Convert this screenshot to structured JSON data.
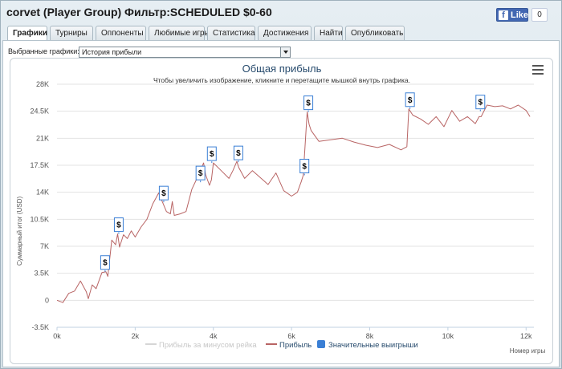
{
  "window": {
    "title": "corvet (Player Group) Фильтр:SCHEDULED $0-60",
    "fb_like_label": "Like",
    "fb_count": "0"
  },
  "tabs": [
    {
      "label": "Графики",
      "active": true
    },
    {
      "label": "Турниры",
      "active": false
    },
    {
      "label": "Оппоненты",
      "active": false
    },
    {
      "label": "Любимые игры",
      "active": false
    },
    {
      "label": "Статистика",
      "active": false
    },
    {
      "label": "Достижения",
      "active": false
    },
    {
      "label": "Найти",
      "active": false
    },
    {
      "label": "Опубликовать",
      "active": false
    }
  ],
  "selector": {
    "label": "Выбранные графики:",
    "value": "История прибыли"
  },
  "chart_data": {
    "type": "line",
    "title": "Общая прибыль",
    "subtitle": "Чтобы увеличить изображение, кликните и перетащите мышкой внутрь графика.",
    "ylabel": "Суммарный итог (USD)",
    "xlabel": "Номер игры",
    "ylim": [
      -3500,
      28000
    ],
    "xlim": [
      0,
      12200
    ],
    "y_ticks": [
      "-3.5K",
      "0",
      "3.5K",
      "7K",
      "10.5K",
      "14K",
      "17.5K",
      "21K",
      "24.5K",
      "28K"
    ],
    "x_ticks": [
      "0k",
      "2k",
      "4k",
      "6k",
      "8k",
      "10k",
      "12k"
    ],
    "grid": true,
    "line_color": "#b86464",
    "legend": [
      {
        "name": "Прибыль за минусом рейка",
        "color": "#d6d6d6"
      },
      {
        "name": "Прибыль",
        "color": "#b86464"
      },
      {
        "name": "Значительные выигрыши",
        "color": "#3a7fd5"
      }
    ],
    "marker_label": "$",
    "series": [
      {
        "name": "Прибыль",
        "x": [
          0,
          150,
          300,
          450,
          600,
          750,
          800,
          900,
          1000,
          1050,
          1150,
          1250,
          1300,
          1400,
          1500,
          1550,
          1600,
          1700,
          1800,
          1900,
          2000,
          2150,
          2300,
          2450,
          2600,
          2700,
          2800,
          2900,
          2950,
          3000,
          3150,
          3300,
          3450,
          3600,
          3750,
          3800,
          3900,
          3950,
          4000,
          4200,
          4400,
          4500,
          4600,
          4650,
          4800,
          5000,
          5200,
          5400,
          5600,
          5800,
          6000,
          6150,
          6250,
          6300,
          6400,
          6450,
          6500,
          6700,
          7000,
          7300,
          7600,
          7900,
          8200,
          8500,
          8800,
          8950,
          9000,
          9100,
          9300,
          9500,
          9700,
          9900,
          10100,
          10300,
          10500,
          10700,
          10800,
          10850,
          11000,
          11200,
          11400,
          11600,
          11800,
          12000,
          12100
        ],
        "y": [
          0,
          -300,
          900,
          1200,
          2500,
          1100,
          200,
          2000,
          1500,
          2200,
          3600,
          3700,
          3100,
          7800,
          7200,
          8600,
          6900,
          8500,
          8000,
          9000,
          8200,
          9500,
          10500,
          12500,
          13900,
          12700,
          11500,
          11200,
          12800,
          11000,
          11200,
          11500,
          14400,
          16000,
          17800,
          16300,
          14900,
          15600,
          17800,
          16800,
          15800,
          16800,
          18000,
          17200,
          15800,
          16800,
          15900,
          15000,
          16500,
          14200,
          13500,
          14000,
          15400,
          16200,
          24400,
          22800,
          22000,
          20600,
          20800,
          21000,
          20500,
          20100,
          19800,
          20200,
          19500,
          19900,
          24800,
          24000,
          23500,
          22800,
          23800,
          22500,
          24600,
          23200,
          23800,
          22900,
          23800,
          23800,
          25300,
          25100,
          25200,
          24800,
          25300,
          24600,
          23800
        ]
      }
    ],
    "markers": [
      {
        "x": 1230,
        "y": 3700
      },
      {
        "x": 1580,
        "y": 8600
      },
      {
        "x": 2730,
        "y": 12700
      },
      {
        "x": 3670,
        "y": 15300
      },
      {
        "x": 3960,
        "y": 17800
      },
      {
        "x": 4640,
        "y": 17900
      },
      {
        "x": 6330,
        "y": 16200
      },
      {
        "x": 6430,
        "y": 24400
      },
      {
        "x": 9030,
        "y": 24800
      },
      {
        "x": 10830,
        "y": 24500
      }
    ]
  }
}
